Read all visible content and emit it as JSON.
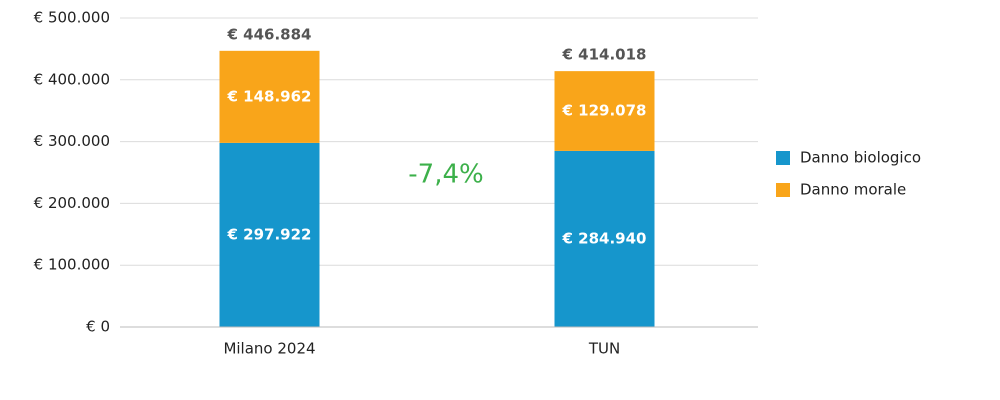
{
  "chart_data": {
    "type": "stacked_bar",
    "categories": [
      "Milano 2024",
      "TUN"
    ],
    "series": [
      {
        "name": "Danno biologico",
        "color": "#1696cc",
        "values": [
          297922,
          284940
        ],
        "value_labels": [
          "€ 297.922",
          "€ 284.940"
        ]
      },
      {
        "name": "Danno morale",
        "color": "#f9a51a",
        "values": [
          148962,
          129078
        ],
        "value_labels": [
          "€ 148.962",
          "€ 129.078"
        ]
      }
    ],
    "totals": {
      "values": [
        446884,
        414018
      ],
      "value_labels": [
        "€ 446.884",
        "€ 414.018"
      ]
    },
    "annotation": "-7,4%",
    "annotation_color": "#3cb04a",
    "ylim": [
      0,
      500000
    ],
    "yticks": [
      {
        "value": 0,
        "label": "€ 0"
      },
      {
        "value": 100000,
        "label": "€ 100.000"
      },
      {
        "value": 200000,
        "label": "€ 200.000"
      },
      {
        "value": 300000,
        "label": "€ 300.000"
      },
      {
        "value": 400000,
        "label": "€ 400.000"
      },
      {
        "value": 500000,
        "label": "€ 500.000"
      }
    ],
    "grid": true,
    "legend": "right"
  }
}
